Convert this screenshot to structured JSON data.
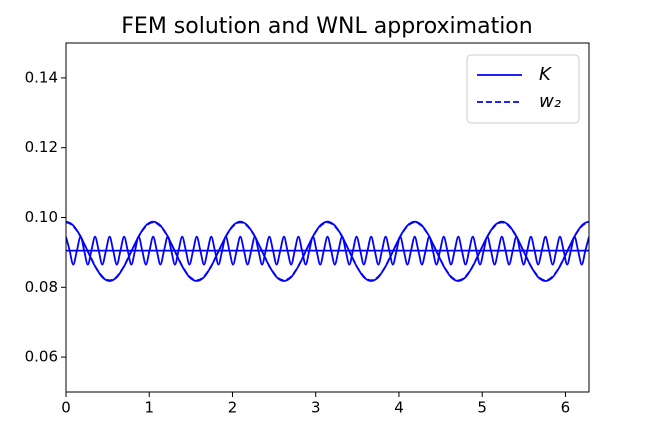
{
  "chart_data": {
    "type": "line",
    "title": "FEM solution and WNL approximation",
    "x": [
      0,
      0.044,
      0.087,
      0.131,
      0.175,
      0.218,
      0.262,
      0.305,
      0.349,
      0.393,
      0.436,
      0.48,
      0.524,
      0.567,
      0.611,
      0.654,
      0.698,
      0.742,
      0.785,
      0.829,
      0.873,
      0.916,
      0.96,
      1.003,
      1.047,
      1.091,
      1.134,
      1.178,
      1.222,
      1.265,
      1.309,
      1.352,
      1.396,
      1.44,
      1.483,
      1.527,
      1.571,
      1.614,
      1.658,
      1.701,
      1.745,
      1.789,
      1.832,
      1.876,
      1.92,
      1.963,
      2.007,
      2.05,
      2.094,
      2.138,
      2.181,
      2.225,
      2.269,
      2.312,
      2.356,
      2.399,
      2.443,
      2.487,
      2.53,
      2.574,
      2.618,
      2.661,
      2.705,
      2.748,
      2.792,
      2.836,
      2.879,
      2.923,
      2.967,
      3.01,
      3.054,
      3.097,
      3.142,
      3.186,
      3.229,
      3.273,
      3.317,
      3.36,
      3.404,
      3.447,
      3.491,
      3.535,
      3.578,
      3.622,
      3.666,
      3.709,
      3.753,
      3.796,
      3.84,
      3.884,
      3.927,
      3.971,
      4.015,
      4.058,
      4.102,
      4.145,
      4.189,
      4.233,
      4.276,
      4.32,
      4.364,
      4.407,
      4.451,
      4.494,
      4.538,
      4.582,
      4.625,
      4.669,
      4.713,
      4.756,
      4.8,
      4.843,
      4.887,
      4.931,
      4.974,
      5.018,
      5.062,
      5.105,
      5.149,
      5.192,
      5.236,
      5.28,
      5.323,
      5.367,
      5.411,
      5.454,
      5.498,
      5.541,
      5.585,
      5.629,
      5.672,
      5.716,
      5.76,
      5.803,
      5.847,
      5.89,
      5.934,
      5.978,
      6.021,
      6.065,
      6.109,
      6.152,
      6.196,
      6.239,
      6.283
    ],
    "series": [
      {
        "name": "K",
        "color": "#0000ff",
        "style": "solid",
        "values": [
          0.0988,
          0.0985,
          0.0977,
          0.0963,
          0.0946,
          0.0925,
          0.0903,
          0.0881,
          0.086,
          0.0843,
          0.0829,
          0.0821,
          0.0818,
          0.0821,
          0.0829,
          0.0843,
          0.086,
          0.0881,
          0.0903,
          0.0925,
          0.0946,
          0.0963,
          0.0977,
          0.0985,
          0.0988,
          0.0985,
          0.0977,
          0.0963,
          0.0946,
          0.0925,
          0.0903,
          0.0881,
          0.086,
          0.0843,
          0.0829,
          0.0821,
          0.0818,
          0.0821,
          0.0829,
          0.0843,
          0.086,
          0.0881,
          0.0903,
          0.0925,
          0.0946,
          0.0963,
          0.0977,
          0.0985,
          0.0988,
          0.0985,
          0.0977,
          0.0963,
          0.0946,
          0.0925,
          0.0903,
          0.0881,
          0.086,
          0.0843,
          0.0829,
          0.0821,
          0.0818,
          0.0821,
          0.0829,
          0.0843,
          0.086,
          0.0881,
          0.0903,
          0.0925,
          0.0946,
          0.0963,
          0.0977,
          0.0985,
          0.0988,
          0.0985,
          0.0977,
          0.0963,
          0.0946,
          0.0925,
          0.0903,
          0.0881,
          0.086,
          0.0843,
          0.0829,
          0.0821,
          0.0818,
          0.0821,
          0.0829,
          0.0843,
          0.086,
          0.0881,
          0.0903,
          0.0925,
          0.0946,
          0.0963,
          0.0977,
          0.0985,
          0.0988,
          0.0985,
          0.0977,
          0.0963,
          0.0946,
          0.0925,
          0.0903,
          0.0881,
          0.086,
          0.0843,
          0.0829,
          0.0821,
          0.0818,
          0.0821,
          0.0829,
          0.0843,
          0.086,
          0.0881,
          0.0903,
          0.0925,
          0.0946,
          0.0963,
          0.0977,
          0.0985,
          0.0988,
          0.0985,
          0.0977,
          0.0963,
          0.0946,
          0.0925,
          0.0903,
          0.0881,
          0.086,
          0.0843,
          0.0829,
          0.0821,
          0.0818,
          0.0821,
          0.0829,
          0.0843,
          0.086,
          0.0881,
          0.0903,
          0.0925,
          0.0946,
          0.0963,
          0.0977,
          0.0985,
          0.0988
        ]
      },
      {
        "name": "w₂",
        "color": "#0000ff",
        "style": "dashed",
        "values": [
          0.0986,
          0.0983,
          0.0975,
          0.0962,
          0.0945,
          0.0924,
          0.0903,
          0.0882,
          0.0861,
          0.0844,
          0.0831,
          0.0823,
          0.082,
          0.0823,
          0.0831,
          0.0844,
          0.0861,
          0.0882,
          0.0903,
          0.0924,
          0.0945,
          0.0962,
          0.0975,
          0.0983,
          0.0986,
          0.0983,
          0.0975,
          0.0962,
          0.0945,
          0.0924,
          0.0903,
          0.0882,
          0.0861,
          0.0844,
          0.0831,
          0.0823,
          0.082,
          0.0823,
          0.0831,
          0.0844,
          0.0861,
          0.0882,
          0.0903,
          0.0924,
          0.0945,
          0.0962,
          0.0975,
          0.0983,
          0.0986,
          0.0983,
          0.0975,
          0.0962,
          0.0945,
          0.0924,
          0.0903,
          0.0882,
          0.0861,
          0.0844,
          0.0831,
          0.0823,
          0.082,
          0.0823,
          0.0831,
          0.0844,
          0.0861,
          0.0882,
          0.0903,
          0.0924,
          0.0945,
          0.0962,
          0.0975,
          0.0983,
          0.0986,
          0.0983,
          0.0975,
          0.0962,
          0.0945,
          0.0924,
          0.0903,
          0.0882,
          0.0861,
          0.0844,
          0.0831,
          0.0823,
          0.082,
          0.0823,
          0.0831,
          0.0844,
          0.0861,
          0.0882,
          0.0903,
          0.0924,
          0.0945,
          0.0962,
          0.0975,
          0.0983,
          0.0986,
          0.0983,
          0.0975,
          0.0962,
          0.0945,
          0.0924,
          0.0903,
          0.0882,
          0.0861,
          0.0844,
          0.0831,
          0.0823,
          0.082,
          0.0823,
          0.0831,
          0.0844,
          0.0861,
          0.0882,
          0.0903,
          0.0924,
          0.0945,
          0.0962,
          0.0975,
          0.0983,
          0.0986,
          0.0983,
          0.0975,
          0.0962,
          0.0945,
          0.0924,
          0.0903,
          0.0882,
          0.0861,
          0.0844,
          0.0831,
          0.0823,
          0.082,
          0.0823,
          0.0831,
          0.0844,
          0.0861,
          0.0882,
          0.0903,
          0.0924,
          0.0945,
          0.0962,
          0.0975,
          0.0983,
          0.0986
        ]
      },
      {
        "color": "#0000ff",
        "style": "solid",
        "values": [
          0.0945,
          0.0905,
          0.0865,
          0.0905,
          0.0945,
          0.0905,
          0.0865,
          0.0905,
          0.0945,
          0.0905,
          0.0865,
          0.0905,
          0.0945,
          0.0905,
          0.0865,
          0.0905,
          0.0945,
          0.0905,
          0.0865,
          0.0905,
          0.0945,
          0.0905,
          0.0865,
          0.0905,
          0.0945,
          0.0905,
          0.0865,
          0.0905,
          0.0945,
          0.0905,
          0.0865,
          0.0905,
          0.0945,
          0.0905,
          0.0865,
          0.0905,
          0.0945,
          0.0905,
          0.0865,
          0.0905,
          0.0945,
          0.0905,
          0.0865,
          0.0905,
          0.0945,
          0.0905,
          0.0865,
          0.0905,
          0.0945,
          0.0905,
          0.0865,
          0.0905,
          0.0945,
          0.0905,
          0.0865,
          0.0905,
          0.0945,
          0.0905,
          0.0865,
          0.0905,
          0.0945,
          0.0905,
          0.0865,
          0.0905,
          0.0945,
          0.0905,
          0.0865,
          0.0905,
          0.0945,
          0.0905,
          0.0865,
          0.0905,
          0.0945,
          0.0905,
          0.0865,
          0.0905,
          0.0945,
          0.0905,
          0.0865,
          0.0905,
          0.0945,
          0.0905,
          0.0865,
          0.0905,
          0.0945,
          0.0905,
          0.0865,
          0.0905,
          0.0945,
          0.0905,
          0.0865,
          0.0905,
          0.0945,
          0.0905,
          0.0865,
          0.0905,
          0.0945,
          0.0905,
          0.0865,
          0.0905,
          0.0945,
          0.0905,
          0.0865,
          0.0905,
          0.0945,
          0.0905,
          0.0865,
          0.0905,
          0.0945,
          0.0905,
          0.0865,
          0.0905,
          0.0945,
          0.0905,
          0.0865,
          0.0905,
          0.0945,
          0.0905,
          0.0865,
          0.0905,
          0.0945,
          0.0905,
          0.0865,
          0.0905,
          0.0945,
          0.0905,
          0.0865,
          0.0905,
          0.0945,
          0.0905,
          0.0865,
          0.0905,
          0.0945,
          0.0905,
          0.0865,
          0.0905,
          0.0945,
          0.0905,
          0.0865,
          0.0905,
          0.0945,
          0.0905,
          0.0865,
          0.0905,
          0.0945
        ]
      },
      {
        "color": "#0000ff",
        "style": "solid",
        "x": [
          0,
          6.283
        ],
        "values": [
          0.0905,
          0.0905
        ]
      }
    ],
    "xlim": [
      0,
      6.283
    ],
    "ylim": [
      0.05,
      0.15
    ],
    "xticks": [
      0,
      1,
      2,
      3,
      4,
      5,
      6
    ],
    "yticks": [
      0.06,
      0.08,
      0.1,
      0.12,
      0.14
    ],
    "grid": false,
    "legend": "upper right"
  }
}
